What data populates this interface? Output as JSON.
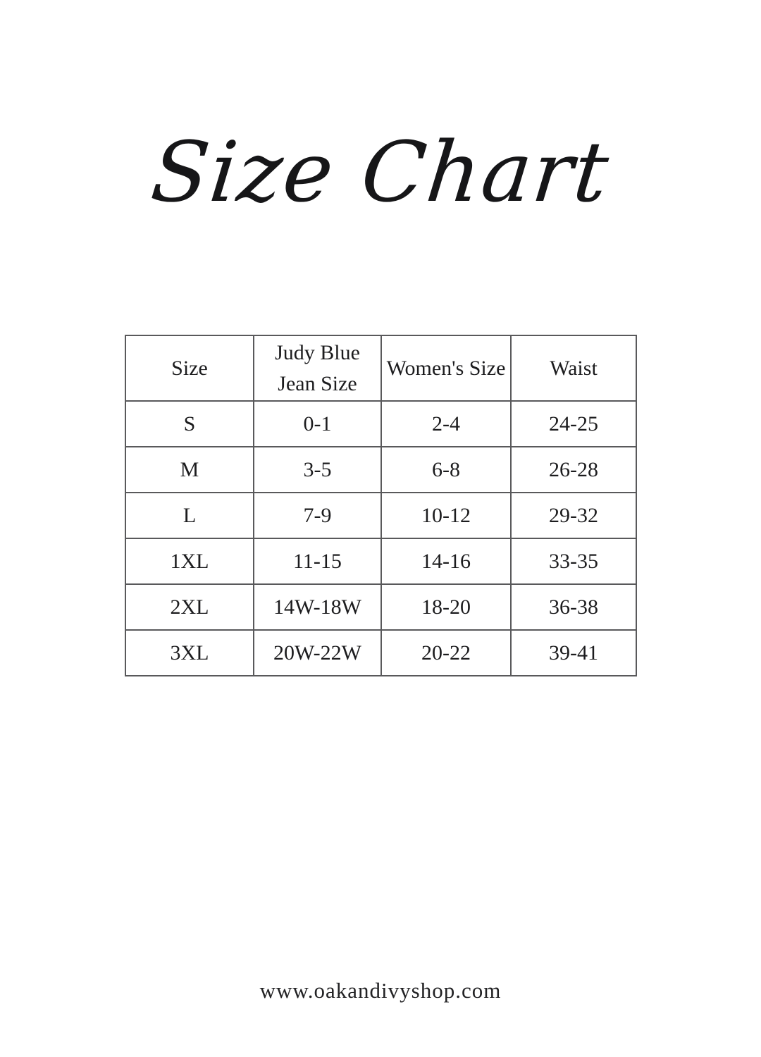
{
  "page": {
    "title": "Size Chart",
    "footer_url": "www.oakandivyshop.com",
    "colors": {
      "background": "#ffffff",
      "text": "#1c1c1e",
      "table_border": "#59595b"
    }
  },
  "size_chart": {
    "columns": [
      "Size",
      "Judy Blue\nJean Size",
      "Women's Size",
      "Waist"
    ],
    "rows": [
      {
        "size": "S",
        "judy_blue_jean_size": "0-1",
        "womens_size": "2-4",
        "waist": "24-25"
      },
      {
        "size": "M",
        "judy_blue_jean_size": "3-5",
        "womens_size": "6-8",
        "waist": "26-28"
      },
      {
        "size": "L",
        "judy_blue_jean_size": "7-9",
        "womens_size": "10-12",
        "waist": "29-32"
      },
      {
        "size": "1XL",
        "judy_blue_jean_size": "11-15",
        "womens_size": "14-16",
        "waist": "33-35"
      },
      {
        "size": "2XL",
        "judy_blue_jean_size": "14W-18W",
        "womens_size": "18-20",
        "waist": "36-38"
      },
      {
        "size": "3XL",
        "judy_blue_jean_size": "20W-22W",
        "womens_size": "20-22",
        "waist": "39-41"
      }
    ]
  },
  "chart_data": {
    "type": "table",
    "title": "Size Chart",
    "columns": [
      "Size",
      "Judy Blue Jean Size",
      "Women's Size",
      "Waist"
    ],
    "rows": [
      [
        "S",
        "0-1",
        "2-4",
        "24-25"
      ],
      [
        "M",
        "3-5",
        "6-8",
        "26-28"
      ],
      [
        "L",
        "7-9",
        "10-12",
        "29-32"
      ],
      [
        "1XL",
        "11-15",
        "14-16",
        "33-35"
      ],
      [
        "2XL",
        "14W-18W",
        "18-20",
        "36-38"
      ],
      [
        "3XL",
        "20W-22W",
        "20-22",
        "39-41"
      ]
    ]
  }
}
